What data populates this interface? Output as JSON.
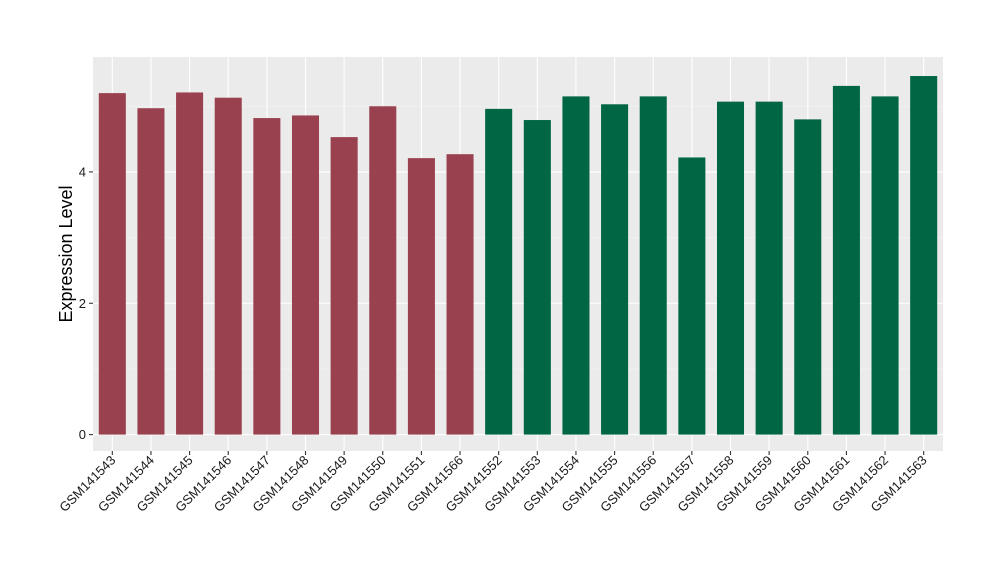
{
  "chart_data": {
    "type": "bar",
    "title": "",
    "xlabel": "",
    "ylabel": "Expression Level",
    "ylim": [
      -0.25,
      5.75
    ],
    "y_ticks": [
      0,
      2,
      4
    ],
    "grid": true,
    "legend": "none",
    "categories": [
      "GSM141543",
      "GSM141544",
      "GSM141545",
      "GSM141546",
      "GSM141547",
      "GSM141548",
      "GSM141549",
      "GSM141550",
      "GSM141551",
      "GSM141566",
      "GSM141552",
      "GSM141553",
      "GSM141554",
      "GSM141555",
      "GSM141556",
      "GSM141557",
      "GSM141558",
      "GSM141559",
      "GSM141560",
      "GSM141561",
      "GSM141562",
      "GSM141563"
    ],
    "values": [
      5.2,
      4.97,
      5.21,
      5.13,
      4.82,
      4.86,
      4.53,
      5.0,
      4.21,
      4.27,
      4.96,
      4.79,
      5.15,
      5.03,
      5.15,
      4.22,
      5.07,
      5.07,
      4.8,
      5.31,
      5.15,
      5.46
    ],
    "groups": [
      0,
      0,
      0,
      0,
      0,
      0,
      0,
      0,
      0,
      0,
      1,
      1,
      1,
      1,
      1,
      1,
      1,
      1,
      1,
      1,
      1,
      1
    ],
    "colors": [
      "#9a414f",
      "#006643"
    ]
  }
}
